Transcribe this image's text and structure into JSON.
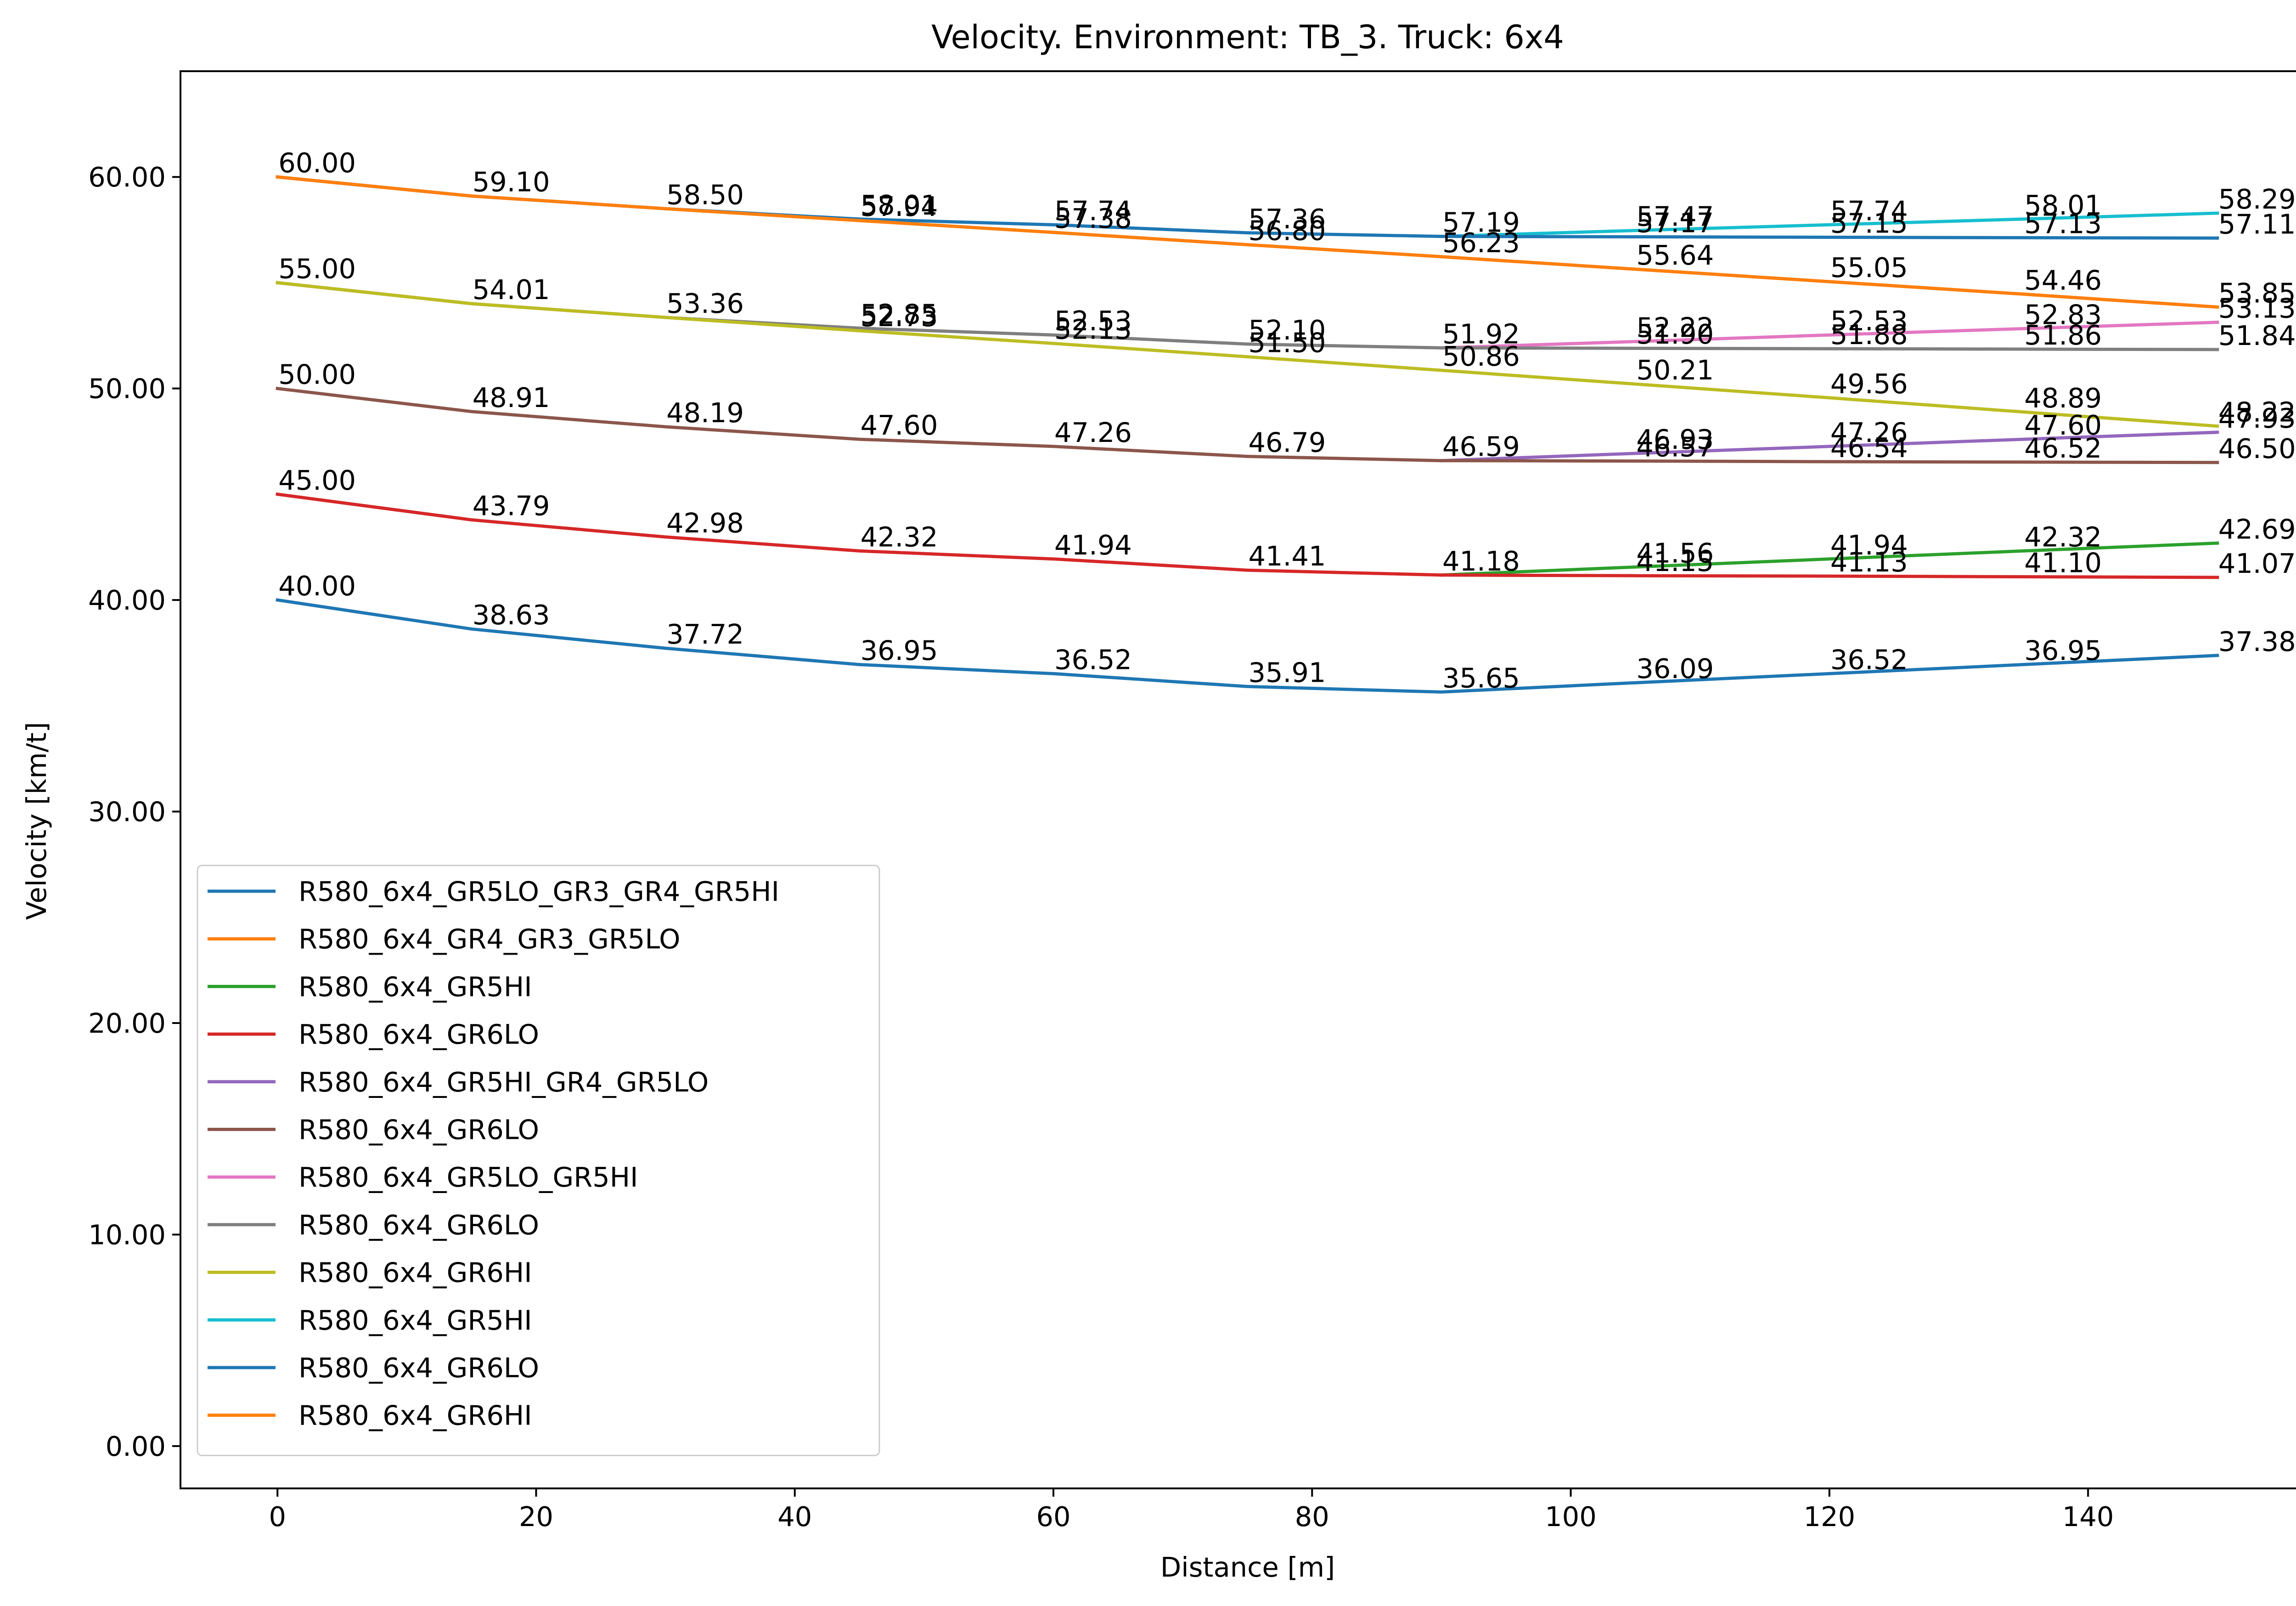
{
  "chart_data": {
    "type": "line",
    "title": "Velocity. Environment: TB_3. Truck: 6x4",
    "xlabel": "Distance [m]",
    "ylabel": "Velocity [km/t]",
    "xlim": [
      -7.5,
      157.5
    ],
    "ylim": [
      -2.0,
      65.0
    ],
    "xticks": [
      0,
      20,
      40,
      60,
      80,
      100,
      120,
      140
    ],
    "xtick_labels": [
      "0",
      "20",
      "40",
      "60",
      "80",
      "100",
      "120",
      "140"
    ],
    "yticks": [
      0,
      10,
      20,
      30,
      40,
      50,
      60
    ],
    "ytick_labels": [
      "0.00",
      "10.00",
      "20.00",
      "30.00",
      "40.00",
      "50.00",
      "60.00"
    ],
    "grid": false,
    "legend_position": "lower-left",
    "x": [
      0,
      15,
      30,
      45,
      60,
      75,
      90,
      105,
      120,
      135,
      150
    ],
    "series": [
      {
        "name": "R580_6x4_GR5LO_GR3_GR4_GR5HI",
        "color": "#1f77b4",
        "x": [
          0,
          15,
          30,
          45,
          60,
          75,
          90,
          105,
          120,
          135,
          150
        ],
        "values": [
          40.0,
          38.63,
          37.72,
          36.95,
          36.52,
          35.91,
          35.65,
          36.09,
          36.52,
          36.95,
          37.38
        ],
        "labels": [
          "40.00",
          "38.63",
          "37.72",
          "36.95",
          "36.52",
          "35.91",
          "35.65",
          "36.09",
          "36.52",
          "36.95",
          "37.38"
        ]
      },
      {
        "name": "R580_6x4_GR4_GR3_GR5LO",
        "color": "#ff7f0e",
        "x": [
          0,
          15,
          30,
          45,
          60,
          75,
          90,
          105,
          120,
          135,
          150
        ],
        "values": [
          60.0,
          59.1,
          58.5,
          57.94,
          57.38,
          56.8,
          56.23,
          55.64,
          55.05,
          54.46,
          53.85
        ],
        "labels": [
          "60.00",
          "59.10",
          "58.50",
          "57.94",
          "57.38",
          "56.80",
          "56.23",
          "55.64",
          "55.05",
          "54.46",
          "53.85"
        ]
      },
      {
        "name": "R580_6x4_GR5HI",
        "color": "#2ca02c",
        "x": [
          90,
          105,
          120,
          135,
          150
        ],
        "values": [
          41.18,
          41.56,
          41.94,
          42.32,
          42.69
        ],
        "labels": [
          "",
          "41.56",
          "41.94",
          "42.32",
          "42.69"
        ]
      },
      {
        "name": "R580_6x4_GR6LO",
        "color": "#d62728",
        "x": [
          0,
          15,
          30,
          45,
          60,
          75,
          90,
          105,
          120,
          135,
          150
        ],
        "values": [
          45.0,
          43.79,
          42.98,
          42.32,
          41.94,
          41.41,
          41.18,
          41.15,
          41.13,
          41.1,
          41.07
        ],
        "labels": [
          "45.00",
          "43.79",
          "42.98",
          "42.32",
          "41.94",
          "41.41",
          "41.18",
          "41.15",
          "41.13",
          "41.10",
          "41.07"
        ]
      },
      {
        "name": "R580_6x4_GR5HI_GR4_GR5LO",
        "color": "#9467bd",
        "x": [
          90,
          105,
          120,
          135,
          150
        ],
        "values": [
          46.59,
          46.93,
          47.26,
          47.6,
          47.93
        ],
        "labels": [
          "",
          "46.93",
          "47.26",
          "47.60",
          "47.93"
        ]
      },
      {
        "name": "R580_6x4_GR6LO",
        "color": "#8c564b",
        "x": [
          0,
          15,
          30,
          45,
          60,
          75,
          90,
          105,
          120,
          135,
          150
        ],
        "values": [
          50.0,
          48.91,
          48.19,
          47.6,
          47.26,
          46.79,
          46.59,
          46.57,
          46.54,
          46.52,
          46.5
        ],
        "labels": [
          "50.00",
          "48.91",
          "48.19",
          "47.60",
          "47.26",
          "46.79",
          "46.59",
          "46.57",
          "46.54",
          "46.52",
          "46.50"
        ]
      },
      {
        "name": "R580_6x4_GR5LO_GR5HI",
        "color": "#e377c2",
        "x": [
          90,
          105,
          120,
          135,
          150
        ],
        "values": [
          51.92,
          52.22,
          52.53,
          52.83,
          53.13
        ],
        "labels": [
          "",
          "52.22",
          "52.53",
          "52.83",
          "53.13"
        ]
      },
      {
        "name": "R580_6x4_GR6LO",
        "color": "#7f7f7f",
        "x": [
          0,
          15,
          30,
          45,
          60,
          75,
          90,
          105,
          120,
          135,
          150
        ],
        "values": [
          55.0,
          54.01,
          53.36,
          52.85,
          52.53,
          52.1,
          51.92,
          51.9,
          51.88,
          51.86,
          51.84
        ],
        "labels": [
          "55.00",
          "54.01",
          "53.36",
          "52.85",
          "52.53",
          "52.10",
          "51.92",
          "51.90",
          "51.88",
          "51.86",
          "51.84"
        ]
      },
      {
        "name": "R580_6x4_GR6HI",
        "color": "#bcbd22",
        "x": [
          0,
          15,
          30,
          45,
          60,
          75,
          90,
          105,
          120,
          135,
          150
        ],
        "values": [
          55.0,
          54.01,
          53.36,
          52.73,
          52.13,
          51.5,
          50.86,
          50.21,
          49.56,
          48.89,
          48.22
        ],
        "labels": [
          "",
          "",
          "",
          "52.73",
          "52.13",
          "51.50",
          "50.86",
          "50.21",
          "49.56",
          "48.89",
          "48.22"
        ]
      },
      {
        "name": "R580_6x4_GR5HI",
        "color": "#17becf",
        "x": [
          90,
          105,
          120,
          135,
          150
        ],
        "values": [
          57.19,
          57.47,
          57.74,
          58.01,
          58.29
        ],
        "labels": [
          "",
          "57.47",
          "57.74",
          "58.01",
          "58.29"
        ]
      },
      {
        "name": "R580_6x4_GR6LO",
        "color": "#1f77b4",
        "x": [
          0,
          15,
          30,
          45,
          60,
          75,
          90,
          105,
          120,
          135,
          150
        ],
        "values": [
          60.0,
          59.1,
          58.5,
          58.01,
          57.74,
          57.36,
          57.19,
          57.17,
          57.15,
          57.13,
          57.11
        ],
        "labels": [
          "",
          "",
          "",
          "58.01",
          "57.74",
          "57.36",
          "57.19",
          "57.17",
          "57.15",
          "57.13",
          "57.11"
        ]
      },
      {
        "name": "R580_6x4_GR6HI",
        "color": "#ff7f0e",
        "x": [
          0,
          15,
          30,
          45,
          60,
          75,
          90,
          105,
          120,
          135,
          150
        ],
        "values": [
          60.0,
          59.1,
          58.5,
          57.94,
          57.38,
          56.8,
          56.23,
          55.64,
          55.05,
          54.46,
          53.85
        ],
        "labels": [
          "",
          "",
          "",
          "",
          "",
          "",
          "",
          "",
          "",
          "",
          ""
        ]
      }
    ]
  }
}
